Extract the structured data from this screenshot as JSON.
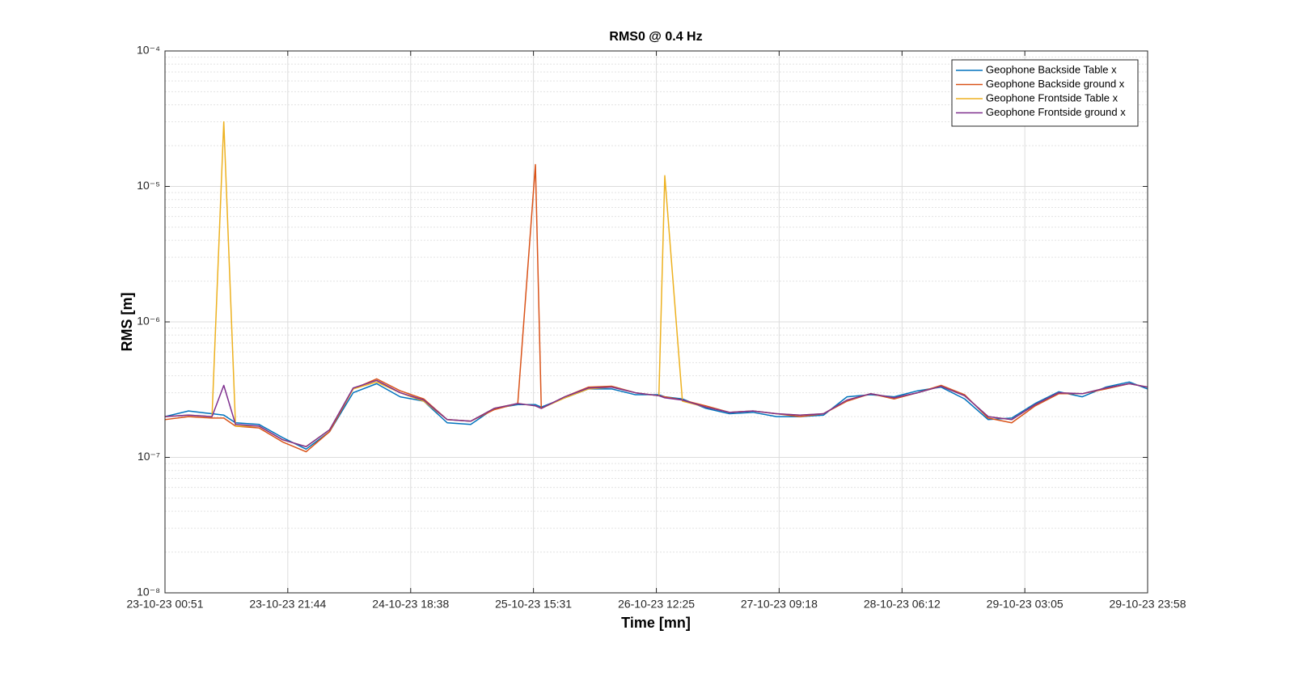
{
  "chart_data": {
    "type": "line",
    "title": "RMS0 @ 0.4 Hz",
    "x_label": "Time [mn]",
    "y_label": "RMS [m]",
    "x": [
      "23-10-23 00:51",
      "23-10-23 04:51",
      "23-10-23 08:51",
      "23-10-23 10:51",
      "23-10-23 12:51",
      "23-10-23 16:51",
      "23-10-23 20:51",
      "24-10-23 00:51",
      "24-10-23 04:51",
      "24-10-23 08:51",
      "24-10-23 12:51",
      "24-10-23 16:51",
      "24-10-23 20:51",
      "25-10-23 00:51",
      "25-10-23 04:51",
      "25-10-23 08:51",
      "25-10-23 12:51",
      "25-10-23 15:51",
      "25-10-23 16:51",
      "25-10-23 20:51",
      "26-10-23 00:51",
      "26-10-23 04:51",
      "26-10-23 08:51",
      "26-10-23 12:51",
      "26-10-23 13:51",
      "26-10-23 16:51",
      "26-10-23 20:51",
      "27-10-23 00:51",
      "27-10-23 04:51",
      "27-10-23 08:51",
      "27-10-23 12:51",
      "27-10-23 16:51",
      "27-10-23 20:51",
      "28-10-23 00:51",
      "28-10-23 04:51",
      "28-10-23 08:51",
      "28-10-23 12:51",
      "28-10-23 16:51",
      "28-10-23 20:51",
      "29-10-23 00:51",
      "29-10-23 04:51",
      "29-10-23 08:51",
      "29-10-23 12:51",
      "29-10-23 16:51",
      "29-10-23 20:51",
      "29-10-23 23:58"
    ],
    "series": [
      {
        "name": "Geophone Backside Table x",
        "color": "#0072bd",
        "values": [
          2e-07,
          2.2e-07,
          2.1e-07,
          2.05e-07,
          1.8e-07,
          1.75e-07,
          1.4e-07,
          1.15e-07,
          1.55e-07,
          3e-07,
          3.5e-07,
          2.8e-07,
          2.6e-07,
          1.8e-07,
          1.75e-07,
          2.3e-07,
          2.45e-07,
          2.45e-07,
          2.35e-07,
          2.75e-07,
          3.2e-07,
          3.2e-07,
          2.9e-07,
          2.9e-07,
          2.8e-07,
          2.7e-07,
          2.3e-07,
          2.1e-07,
          2.15e-07,
          2e-07,
          2e-07,
          2.05e-07,
          2.8e-07,
          2.9e-07,
          2.8e-07,
          3.1e-07,
          3.3e-07,
          2.7e-07,
          1.9e-07,
          1.95e-07,
          2.5e-07,
          3.05e-07,
          2.8e-07,
          3.3e-07,
          3.6e-07,
          3.2e-07
        ]
      },
      {
        "name": "Geophone Backside ground x",
        "color": "#d95319",
        "values": [
          1.9e-07,
          2e-07,
          1.95e-07,
          1.95e-07,
          1.7e-07,
          1.65e-07,
          1.3e-07,
          1.1e-07,
          1.55e-07,
          3.2e-07,
          3.8e-07,
          3.1e-07,
          2.7e-07,
          1.9e-07,
          1.85e-07,
          2.25e-07,
          2.5e-07,
          1.45e-05,
          2.3e-07,
          2.8e-07,
          3.3e-07,
          3.35e-07,
          3e-07,
          2.85e-07,
          2.8e-07,
          2.65e-07,
          2.4e-07,
          2.15e-07,
          2.2e-07,
          2.1e-07,
          2e-07,
          2.1e-07,
          2.6e-07,
          2.95e-07,
          2.7e-07,
          3e-07,
          3.4e-07,
          2.9e-07,
          1.95e-07,
          1.8e-07,
          2.4e-07,
          2.95e-07,
          2.95e-07,
          3.2e-07,
          3.5e-07,
          3.3e-07
        ]
      },
      {
        "name": "Geophone Frontside Table x",
        "color": "#edb120",
        "values": [
          2e-07,
          2.05e-07,
          2e-07,
          3e-05,
          1.7e-07,
          1.7e-07,
          1.35e-07,
          1.2e-07,
          1.6e-07,
          3.2e-07,
          3.6e-07,
          3e-07,
          2.6e-07,
          1.9e-07,
          1.85e-07,
          2.3e-07,
          2.5e-07,
          2.4e-07,
          2.3e-07,
          2.75e-07,
          3.2e-07,
          3.3e-07,
          3e-07,
          2.85e-07,
          1.2e-05,
          2.6e-07,
          2.35e-07,
          2.15e-07,
          2.2e-07,
          2.1e-07,
          2.05e-07,
          2.1e-07,
          2.65e-07,
          2.95e-07,
          2.75e-07,
          3e-07,
          3.35e-07,
          2.85e-07,
          2e-07,
          1.9e-07,
          2.45e-07,
          3e-07,
          2.95e-07,
          3.25e-07,
          3.5e-07,
          3.3e-07
        ]
      },
      {
        "name": "Geophone Frontside ground x",
        "color": "#7e2f8e",
        "values": [
          2e-07,
          2.05e-07,
          2e-07,
          3.4e-07,
          1.75e-07,
          1.7e-07,
          1.35e-07,
          1.2e-07,
          1.6e-07,
          3.25e-07,
          3.7e-07,
          3e-07,
          2.65e-07,
          1.9e-07,
          1.85e-07,
          2.3e-07,
          2.5e-07,
          2.4e-07,
          2.3e-07,
          2.8e-07,
          3.25e-07,
          3.3e-07,
          3e-07,
          2.85e-07,
          2.75e-07,
          2.65e-07,
          2.35e-07,
          2.15e-07,
          2.2e-07,
          2.1e-07,
          2.05e-07,
          2.1e-07,
          2.65e-07,
          2.95e-07,
          2.75e-07,
          3e-07,
          3.35e-07,
          2.85e-07,
          2e-07,
          1.9e-07,
          2.45e-07,
          3e-07,
          2.95e-07,
          3.25e-07,
          3.5e-07,
          3.3e-07
        ]
      }
    ],
    "xlim": [
      "23-10-23 00:51",
      "29-10-23 23:58"
    ],
    "xticks": [
      "23-10-23 00:51",
      "23-10-23 21:44",
      "24-10-23 18:38",
      "25-10-23 15:31",
      "26-10-23 12:25",
      "27-10-23 09:18",
      "28-10-23 06:12",
      "29-10-23 03:05",
      "29-10-23 23:58"
    ],
    "ylim": [
      1e-08,
      0.0001
    ],
    "yticks": [
      {
        "value": 1e-08,
        "label": "10⁻⁸"
      },
      {
        "value": 1e-07,
        "label": "10⁻⁷"
      },
      {
        "value": 1e-06,
        "label": "10⁻⁶"
      },
      {
        "value": 1e-05,
        "label": "10⁻⁵"
      },
      {
        "value": 0.0001,
        "label": "10⁻⁴"
      }
    ],
    "y_scale": "log",
    "grid": true,
    "minor_grid": true,
    "legend": "upper right"
  }
}
